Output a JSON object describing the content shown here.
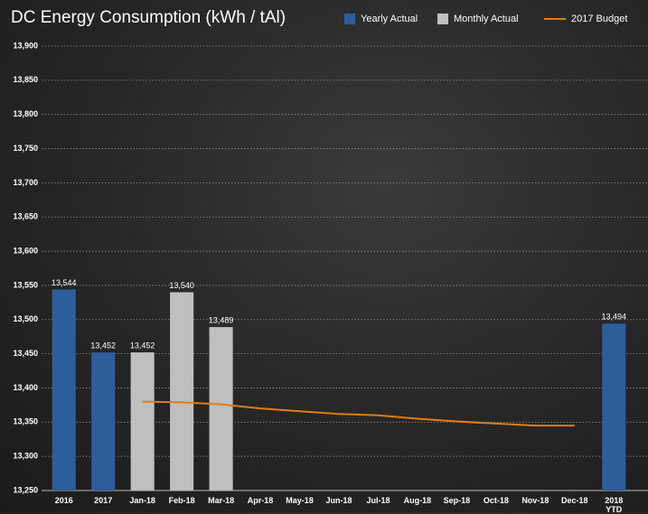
{
  "chart_data": {
    "type": "bar",
    "title": "DC Energy Consumption (kWh / tAl)",
    "categories": [
      "2016",
      "2017",
      "Jan-18",
      "Feb-18",
      "Mar-18",
      "Apr-18",
      "May-18",
      "Jun-18",
      "Jul-18",
      "Aug-18",
      "Sep-18",
      "Oct-18",
      "Nov-18",
      "Dec-18",
      "2018 YTD"
    ],
    "series": [
      {
        "name": "Yearly Actual",
        "type": "bar",
        "color": "#2d5d9b",
        "values": [
          13544,
          13452,
          null,
          null,
          null,
          null,
          null,
          null,
          null,
          null,
          null,
          null,
          null,
          null,
          13494
        ],
        "value_labels": [
          "13,544",
          "13,452",
          null,
          null,
          null,
          null,
          null,
          null,
          null,
          null,
          null,
          null,
          null,
          null,
          "13,494"
        ]
      },
      {
        "name": "Monthly Actual",
        "type": "bar",
        "color": "#bfbfbf",
        "values": [
          null,
          null,
          13452,
          13540,
          13489,
          null,
          null,
          null,
          null,
          null,
          null,
          null,
          null,
          null,
          null
        ],
        "value_labels": [
          null,
          null,
          "13,452",
          "13,540",
          "13,489",
          null,
          null,
          null,
          null,
          null,
          null,
          null,
          null,
          null,
          null
        ]
      },
      {
        "name": "2017 Budget",
        "type": "line",
        "color": "#e07b1a",
        "values": [
          null,
          null,
          13380,
          13379,
          13376,
          13370,
          13366,
          13362,
          13360,
          13355,
          13351,
          13348,
          13345,
          13345,
          null
        ]
      }
    ],
    "ylim": [
      13250,
      13900
    ],
    "yticks": [
      {
        "value": 13250,
        "label": "13,250"
      },
      {
        "value": 13300,
        "label": "13,300"
      },
      {
        "value": 13350,
        "label": "13,350"
      },
      {
        "value": 13400,
        "label": "13,400"
      },
      {
        "value": 13450,
        "label": "13,450"
      },
      {
        "value": 13500,
        "label": "13,500"
      },
      {
        "value": 13550,
        "label": "13,550"
      },
      {
        "value": 13600,
        "label": "13,600"
      },
      {
        "value": 13650,
        "label": "13,650"
      },
      {
        "value": 13700,
        "label": "13,700"
      },
      {
        "value": 13750,
        "label": "13,750"
      },
      {
        "value": 13800,
        "label": "13,800"
      },
      {
        "value": 13850,
        "label": "13,850"
      },
      {
        "value": 13900,
        "label": "13,900"
      }
    ],
    "grid": true,
    "legend": "top-right"
  }
}
